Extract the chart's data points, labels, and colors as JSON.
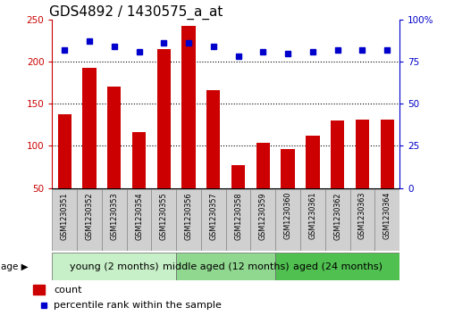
{
  "title": "GDS4892 / 1430575_a_at",
  "samples": [
    "GSM1230351",
    "GSM1230352",
    "GSM1230353",
    "GSM1230354",
    "GSM1230355",
    "GSM1230356",
    "GSM1230357",
    "GSM1230358",
    "GSM1230359",
    "GSM1230360",
    "GSM1230361",
    "GSM1230362",
    "GSM1230363",
    "GSM1230364"
  ],
  "counts": [
    137,
    193,
    170,
    116,
    215,
    242,
    166,
    77,
    104,
    96,
    112,
    130,
    131,
    131
  ],
  "percentile_ranks": [
    82,
    87,
    84,
    81,
    86,
    86,
    84,
    78,
    81,
    80,
    81,
    82,
    82,
    82
  ],
  "groups": [
    {
      "label": "young (2 months)",
      "start": 0,
      "end": 5,
      "color": "#C8F0C8"
    },
    {
      "label": "middle aged (12 months)",
      "start": 5,
      "end": 9,
      "color": "#90D890"
    },
    {
      "label": "aged (24 months)",
      "start": 9,
      "end": 14,
      "color": "#50C050"
    }
  ],
  "ylim_left": [
    50,
    250
  ],
  "ylim_right": [
    0,
    100
  ],
  "yticks_left": [
    50,
    100,
    150,
    200,
    250
  ],
  "yticks_right": [
    0,
    25,
    50,
    75,
    100
  ],
  "bar_color": "#CC0000",
  "dot_color": "#0000CC",
  "bar_bottom": 50,
  "title_fontsize": 11,
  "tick_fontsize": 7.5,
  "sample_fontsize": 5.8,
  "group_label_fontsize": 8,
  "legend_fontsize": 8
}
